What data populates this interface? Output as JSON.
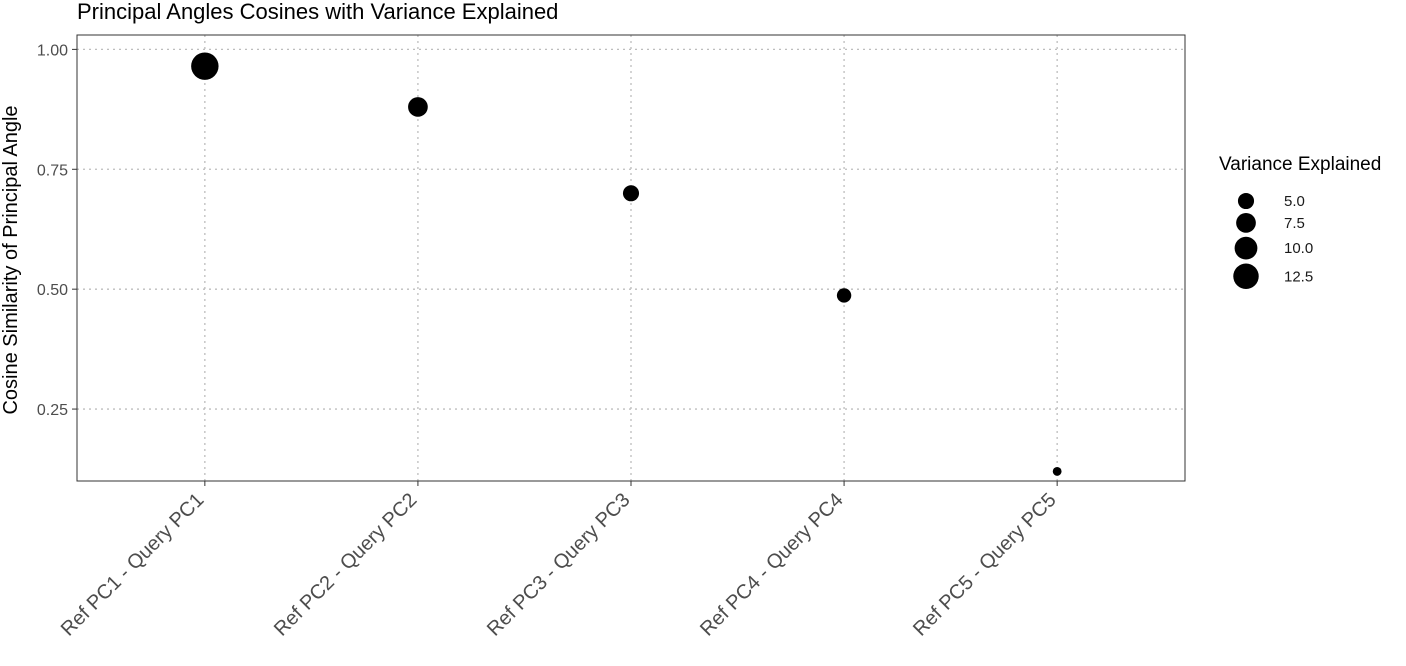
{
  "chart_data": {
    "type": "scatter",
    "title": "Principal Angles Cosines with Variance Explained",
    "xlabel": "",
    "ylabel": "Cosine Similarity of Principal Angle",
    "ylim": [
      0.1,
      1.03
    ],
    "y_ticks": [
      0.25,
      0.5,
      0.75,
      1.0
    ],
    "y_tick_labels": [
      "0.25",
      "0.50",
      "0.75",
      "1.00"
    ],
    "grid": true,
    "grid_style": "dotted",
    "categories": [
      "Ref PC1 - Query PC1",
      "Ref PC2 - Query PC2",
      "Ref PC3 - Query PC3",
      "Ref PC4 - Query PC4",
      "Ref PC5 - Query PC5"
    ],
    "values": [
      0.965,
      0.88,
      0.7,
      0.487,
      0.12
    ],
    "size_values": [
      14.5,
      7.5,
      5.0,
      4.0,
      1.5
    ],
    "point_color": "#000000",
    "legend": {
      "title": "Variance Explained",
      "position": "right",
      "entries": [
        {
          "label": "5.0",
          "value": 5.0
        },
        {
          "label": "7.5",
          "value": 7.5
        },
        {
          "label": "10.0",
          "value": 10.0
        },
        {
          "label": "12.5",
          "value": 12.5
        }
      ]
    }
  }
}
